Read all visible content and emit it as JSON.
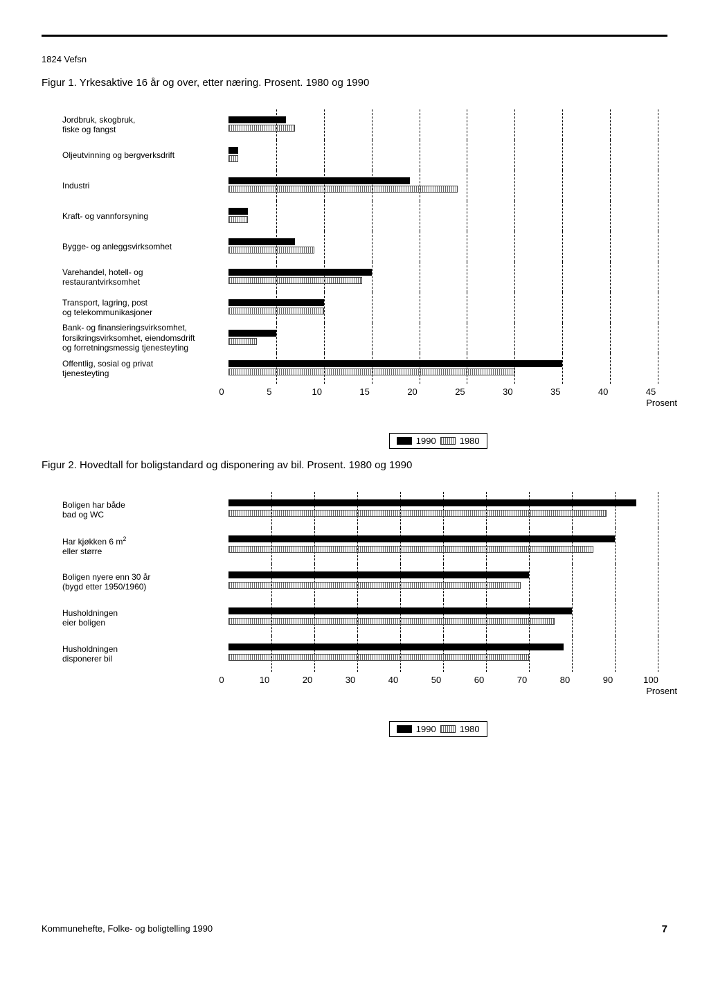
{
  "header": {
    "region_code": "1824 Vefsn"
  },
  "figure1": {
    "title": "Figur 1. Yrkesaktive 16 år og over, etter næring. Prosent. 1980 og 1990",
    "type": "grouped-horizontal-bar",
    "xmax": 45,
    "xtick_step": 5,
    "unit_label": "Prosent",
    "categories": [
      {
        "label": "Jordbruk, skogbruk,\nfiske og fangst",
        "v1990": 6,
        "v1980": 7
      },
      {
        "label": "Oljeutvinning og bergverksdrift",
        "v1990": 1,
        "v1980": 1
      },
      {
        "label": "Industri",
        "v1990": 19,
        "v1980": 24
      },
      {
        "label": "Kraft- og vannforsyning",
        "v1990": 2,
        "v1980": 2
      },
      {
        "label": "Bygge- og anleggsvirksomhet",
        "v1990": 7,
        "v1980": 9
      },
      {
        "label": "Varehandel, hotell- og\nrestaurantvirksomhet",
        "v1990": 15,
        "v1980": 14
      },
      {
        "label": "Transport, lagring, post\nog telekommunikasjoner",
        "v1990": 10,
        "v1980": 10
      },
      {
        "label": "Bank- og finansieringsvirksomhet,\nforsikringsvirksomhet, eiendomsdrift\nog forretningsmessig tjenesteyting",
        "v1990": 5,
        "v1980": 3
      },
      {
        "label": "Offentlig, sosial og privat\ntjenesteyting",
        "v1990": 35,
        "v1980": 30
      }
    ],
    "legend": {
      "a": "1990",
      "b": "1980"
    }
  },
  "figure2": {
    "title": "Figur 2. Hovedtall for boligstandard og disponering av bil. Prosent. 1980 og 1990",
    "type": "grouped-horizontal-bar",
    "xmax": 100,
    "xtick_step": 10,
    "unit_label": "Prosent",
    "categories": [
      {
        "label": "Boligen har både\nbad og WC",
        "v1990": 95,
        "v1980": 88
      },
      {
        "label": "Har kjøkken 6 m² \neller større",
        "v1990": 90,
        "v1980": 85,
        "sup": true
      },
      {
        "label": "Boligen nyere enn 30 år\n(bygd etter 1950/1960)",
        "v1990": 70,
        "v1980": 68
      },
      {
        "label": "Husholdningen\neier boligen",
        "v1990": 80,
        "v1980": 76
      },
      {
        "label": "Husholdningen\ndisponerer bil",
        "v1990": 78,
        "v1980": 70
      }
    ],
    "legend": {
      "a": "1990",
      "b": "1980"
    }
  },
  "footer": {
    "text": "Kommunehefte, Folke- og boligtelling 1990",
    "page_number": "7"
  },
  "colors": {
    "bar_1990": "#000000",
    "bar_1980_pattern": "#666666",
    "grid": "#000000",
    "background": "#ffffff"
  }
}
